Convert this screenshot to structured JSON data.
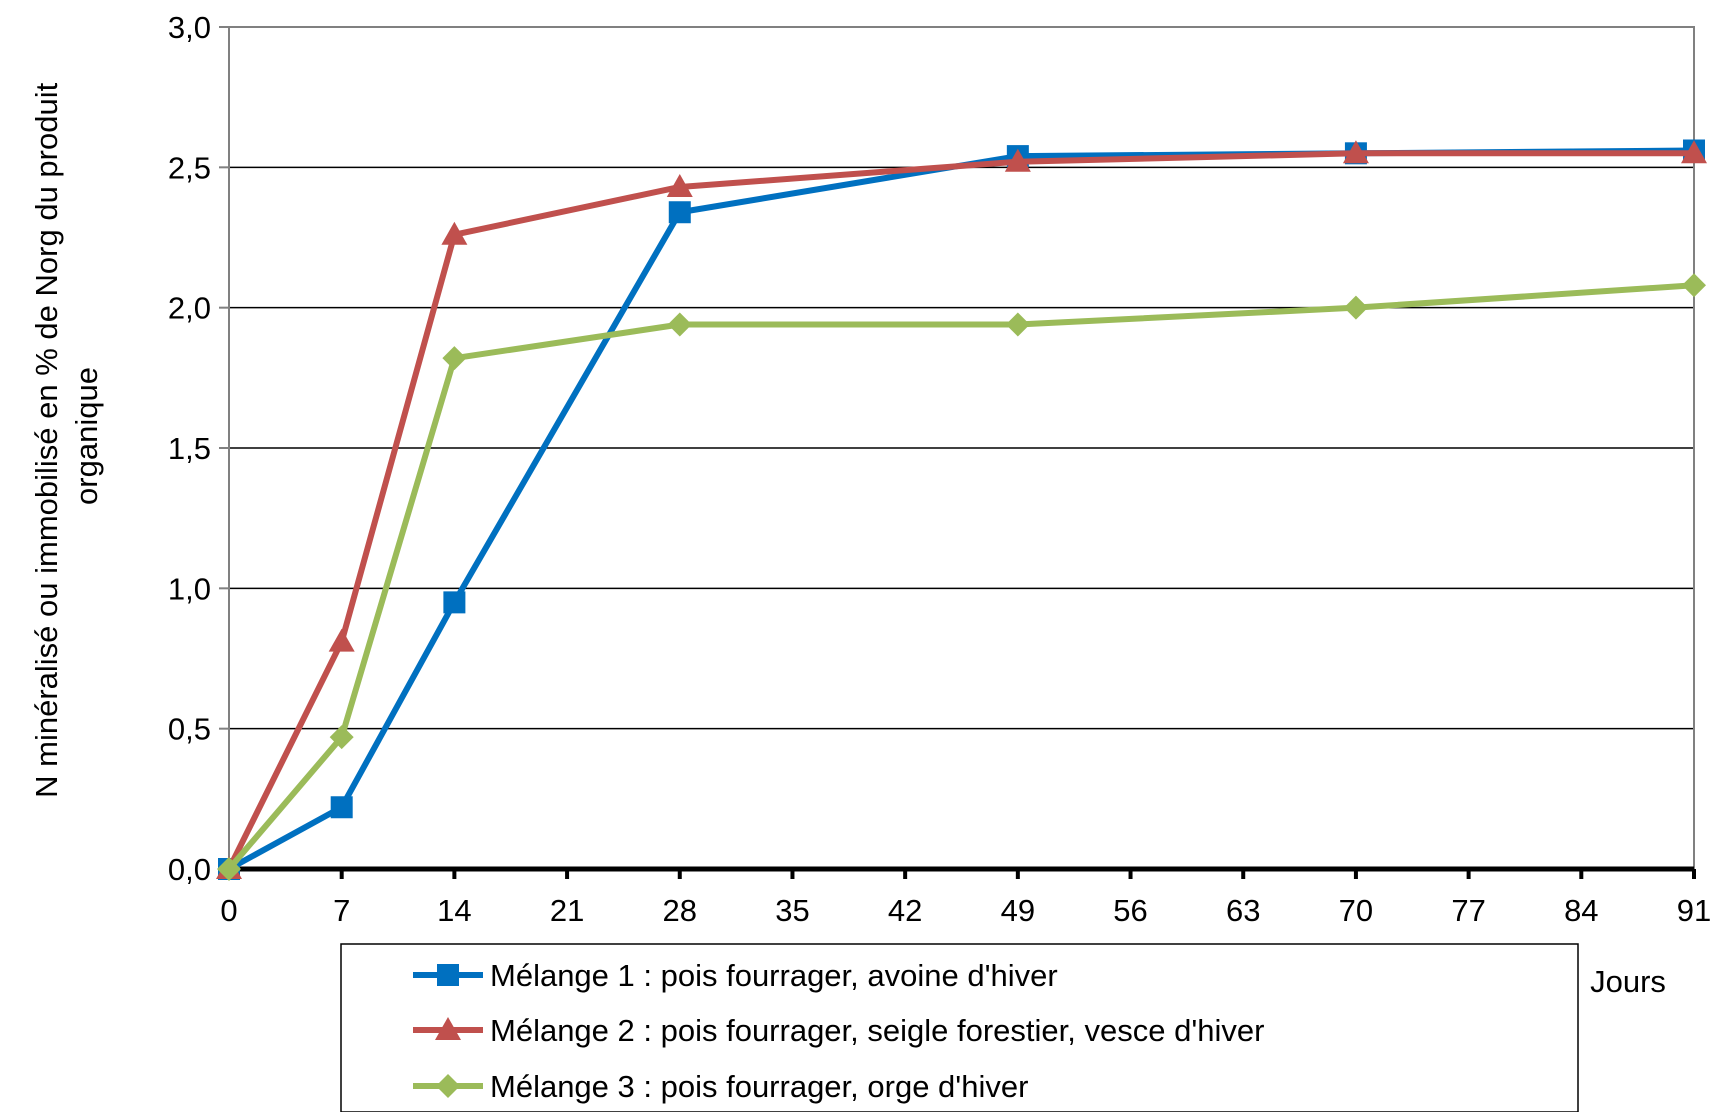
{
  "chart_data": {
    "type": "line",
    "title": "",
    "xlabel": "Jours",
    "ylabel_line1": "N minéralisé ou immobilisé en % de Norg du produit",
    "ylabel_line2": "organique",
    "x_ticks": [
      "0",
      "7",
      "14",
      "21",
      "28",
      "35",
      "42",
      "49",
      "56",
      "63",
      "70",
      "77",
      "84",
      "91"
    ],
    "y_ticks": [
      "0,0",
      "0,5",
      "1,0",
      "1,5",
      "2,0",
      "2,5",
      "3,0"
    ],
    "xlim": [
      0,
      91
    ],
    "ylim": [
      0,
      3.0
    ],
    "grid": "horizontal",
    "legend_position": "bottom",
    "x": [
      0,
      7,
      14,
      28,
      49,
      70,
      91
    ],
    "series": [
      {
        "name": "Mélange 1 : pois fourrager, avoine d'hiver",
        "color": "#0070C0",
        "marker": "square",
        "values": [
          0.0,
          0.22,
          0.95,
          2.34,
          2.54,
          2.55,
          2.56
        ]
      },
      {
        "name": "Mélange 2 : pois fourrager, seigle forestier, vesce d'hiver",
        "color": "#C0504D",
        "marker": "triangle",
        "values": [
          0.0,
          0.81,
          2.26,
          2.43,
          2.52,
          2.55,
          2.55
        ]
      },
      {
        "name": "Mélange 3 : pois fourrager, orge d'hiver",
        "color": "#9BBB59",
        "marker": "diamond",
        "values": [
          0.0,
          0.47,
          1.82,
          1.94,
          1.94,
          2.0,
          2.08
        ]
      }
    ]
  }
}
